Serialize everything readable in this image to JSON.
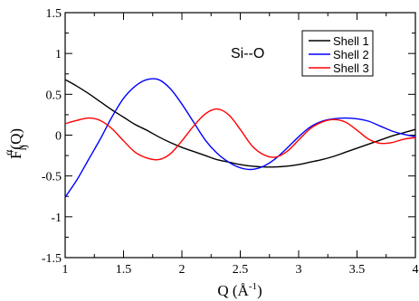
{
  "chart_data": {
    "type": "line",
    "annotation": "Si--O",
    "xlabel": {
      "main": "Q (",
      "unit": "Å",
      "exp": "-1",
      "close": ")"
    },
    "ylabel": {
      "main": "F",
      "sub": "ij",
      "sup": "α",
      "rest": "(Q)"
    },
    "xlim": [
      1,
      4
    ],
    "ylim": [
      -1.5,
      1.5
    ],
    "xticks": [
      1,
      1.5,
      2,
      2.5,
      3,
      3.5,
      4
    ],
    "xtick_labels": [
      "1",
      "1.5",
      "2",
      "2.5",
      "3",
      "3.5",
      "4"
    ],
    "yticks": [
      -1.5,
      -1,
      -0.5,
      0,
      0.5,
      1,
      1.5
    ],
    "ytick_labels": [
      "-1.5",
      "-1",
      "-0.5",
      "0",
      "0.5",
      "1",
      "1.5"
    ],
    "grid": false,
    "legend_position": "top-right",
    "x": [
      1.0,
      1.1,
      1.2,
      1.3,
      1.4,
      1.5,
      1.6,
      1.7,
      1.8,
      1.9,
      2.0,
      2.1,
      2.2,
      2.3,
      2.4,
      2.5,
      2.6,
      2.7,
      2.8,
      2.9,
      3.0,
      3.1,
      3.2,
      3.3,
      3.4,
      3.5,
      3.6,
      3.7,
      3.8,
      3.9,
      4.0
    ],
    "series": [
      {
        "name": "Shell 1",
        "color": "#000000",
        "values": [
          0.68,
          0.6,
          0.51,
          0.41,
          0.31,
          0.22,
          0.13,
          0.06,
          -0.02,
          -0.09,
          -0.15,
          -0.2,
          -0.25,
          -0.3,
          -0.33,
          -0.36,
          -0.38,
          -0.39,
          -0.39,
          -0.38,
          -0.36,
          -0.33,
          -0.3,
          -0.26,
          -0.21,
          -0.16,
          -0.11,
          -0.06,
          -0.01,
          0.03,
          0.07
        ]
      },
      {
        "name": "Shell 2",
        "color": "#0000ff",
        "values": [
          -0.76,
          -0.55,
          -0.3,
          -0.05,
          0.22,
          0.45,
          0.6,
          0.68,
          0.68,
          0.57,
          0.38,
          0.16,
          -0.06,
          -0.22,
          -0.33,
          -0.4,
          -0.42,
          -0.38,
          -0.29,
          -0.16,
          -0.02,
          0.1,
          0.17,
          0.2,
          0.21,
          0.2,
          0.17,
          0.11,
          0.05,
          0.01,
          -0.02
        ]
      },
      {
        "name": "Shell 3",
        "color": "#ff0000",
        "values": [
          0.14,
          0.18,
          0.21,
          0.18,
          0.08,
          -0.07,
          -0.21,
          -0.28,
          -0.3,
          -0.23,
          -0.07,
          0.11,
          0.26,
          0.32,
          0.25,
          0.07,
          -0.13,
          -0.24,
          -0.27,
          -0.2,
          -0.06,
          0.08,
          0.16,
          0.19,
          0.16,
          0.06,
          -0.05,
          -0.1,
          -0.09,
          -0.05,
          -0.03
        ]
      }
    ]
  }
}
